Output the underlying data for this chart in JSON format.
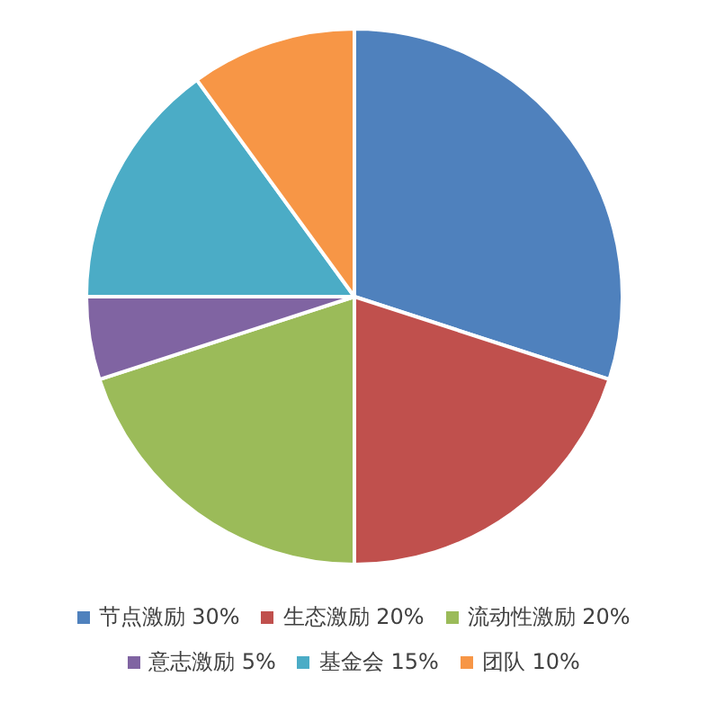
{
  "chart_data": {
    "type": "pie",
    "categories": [
      "节点激励 30%",
      "生态激励 20%",
      "流动性激励 20%",
      "意志激励 5%",
      "基金会 15%",
      "团队 10%"
    ],
    "values": [
      30,
      20,
      20,
      5,
      15,
      10
    ],
    "colors": [
      "#4f81bd",
      "#c0504d",
      "#9bbb59",
      "#8064a2",
      "#4bacc6",
      "#f79646"
    ],
    "legend": "bottom"
  }
}
